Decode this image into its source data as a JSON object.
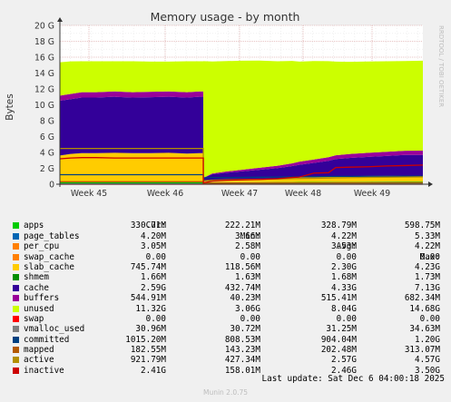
{
  "chart_data": {
    "type": "area",
    "title": "Memory usage - by month",
    "ylabel": "Bytes",
    "watermark": "RRDTOOL / TOBI OETIKER",
    "ylim": [
      0,
      20
    ],
    "y_unit": "G",
    "yticks": [
      "0",
      "2 G",
      "4 G",
      "6 G",
      "8 G",
      "10 G",
      "12 G",
      "14 G",
      "16 G",
      "18 G",
      "20 G"
    ],
    "xticks": [
      "Week 45",
      "Week 46",
      "Week 47",
      "Week 48",
      "Week 49"
    ],
    "grid": true,
    "x_points": [
      0,
      0.03,
      0.06,
      0.1,
      0.15,
      0.2,
      0.25,
      0.3,
      0.35,
      0.385,
      0.3951,
      0.3952,
      0.42,
      0.46,
      0.5,
      0.55,
      0.6,
      0.64,
      0.66,
      0.7,
      0.74,
      0.76,
      0.8,
      0.85,
      0.9,
      0.95,
      1.0
    ],
    "stack": [
      {
        "name": "apps",
        "color": "#00cc00",
        "values": [
          0.3,
          0.3,
          0.3,
          0.3,
          0.3,
          0.3,
          0.3,
          0.3,
          0.3,
          0.3,
          0.3,
          0.22,
          0.25,
          0.25,
          0.25,
          0.26,
          0.27,
          0.27,
          0.28,
          0.28,
          0.29,
          0.3,
          0.3,
          0.31,
          0.32,
          0.33,
          0.33
        ]
      },
      {
        "name": "page_tables",
        "color": "#0066b3",
        "values": [
          0.005,
          0.005,
          0.005,
          0.005,
          0.005,
          0.005,
          0.005,
          0.005,
          0.005,
          0.005,
          0.005,
          0.004,
          0.004,
          0.004,
          0.004,
          0.004,
          0.004,
          0.004,
          0.004,
          0.004,
          0.004,
          0.004,
          0.004,
          0.004,
          0.004,
          0.004,
          0.004
        ]
      },
      {
        "name": "per_cpu",
        "color": "#ff8000",
        "values": [
          0.003,
          0.003,
          0.003,
          0.003,
          0.003,
          0.003,
          0.003,
          0.003,
          0.003,
          0.003,
          0.003,
          0.003,
          0.003,
          0.003,
          0.003,
          0.003,
          0.003,
          0.003,
          0.003,
          0.003,
          0.003,
          0.003,
          0.003,
          0.003,
          0.003,
          0.003,
          0.003
        ]
      },
      {
        "name": "swap_cache",
        "color": "#ffcc00",
        "values": [
          0,
          0,
          0,
          0,
          0,
          0,
          0,
          0,
          0,
          0,
          0,
          0,
          0,
          0,
          0,
          0,
          0,
          0,
          0,
          0,
          0,
          0,
          0,
          0,
          0,
          0,
          0
        ]
      },
      {
        "name": "slab_cache",
        "color": "#ffcc00",
        "values": [
          3.3,
          3.5,
          3.6,
          3.6,
          3.65,
          3.6,
          3.6,
          3.65,
          3.55,
          3.6,
          3.6,
          0.12,
          0.2,
          0.3,
          0.35,
          0.4,
          0.45,
          0.5,
          0.55,
          0.6,
          0.65,
          0.66,
          0.7,
          0.72,
          0.73,
          0.74,
          0.75
        ]
      },
      {
        "name": "shmem",
        "color": "#008f00",
        "values": [
          0.0017,
          0.0017,
          0.0017,
          0.0017,
          0.0017,
          0.0017,
          0.0017,
          0.0017,
          0.0017,
          0.0017,
          0.0017,
          0.0016,
          0.0016,
          0.0016,
          0.0016,
          0.0016,
          0.0016,
          0.0016,
          0.0016,
          0.0016,
          0.0016,
          0.0016,
          0.0016,
          0.0016,
          0.0016,
          0.0016,
          0.0017
        ]
      },
      {
        "name": "cache",
        "color": "#330099",
        "values": [
          6.9,
          6.9,
          7.0,
          7.0,
          7.05,
          7.0,
          7.05,
          7.05,
          7.05,
          7.1,
          7.1,
          0.43,
          0.8,
          0.9,
          1.0,
          1.15,
          1.3,
          1.5,
          1.6,
          1.8,
          2.0,
          2.2,
          2.3,
          2.4,
          2.5,
          2.6,
          2.6
        ]
      },
      {
        "name": "buffers",
        "color": "#990099",
        "values": [
          0.65,
          0.66,
          0.67,
          0.67,
          0.68,
          0.67,
          0.68,
          0.68,
          0.68,
          0.68,
          0.68,
          0.04,
          0.1,
          0.15,
          0.2,
          0.25,
          0.3,
          0.35,
          0.4,
          0.42,
          0.45,
          0.48,
          0.5,
          0.52,
          0.53,
          0.54,
          0.545
        ]
      },
      {
        "name": "unused",
        "color": "#ccff00",
        "values": [
          4.2,
          4.1,
          3.9,
          3.9,
          3.8,
          3.9,
          3.8,
          3.75,
          3.9,
          3.8,
          3.8,
          14.68,
          14.1,
          13.9,
          13.75,
          13.5,
          13.15,
          12.9,
          12.6,
          12.4,
          12.1,
          11.8,
          11.6,
          11.5,
          11.4,
          11.3,
          11.32
        ]
      }
    ],
    "lines": [
      {
        "name": "swap",
        "color": "#ff0000",
        "values": [
          0,
          0,
          0,
          0,
          0,
          0,
          0,
          0,
          0,
          0,
          0,
          0,
          0,
          0,
          0,
          0,
          0,
          0,
          0,
          0,
          0,
          0,
          0,
          0,
          0,
          0,
          0
        ]
      },
      {
        "name": "vmalloc_used",
        "color": "#808080",
        "values": [
          0.0346,
          0.0346,
          0.0346,
          0.0346,
          0.0346,
          0.0346,
          0.0346,
          0.0346,
          0.0346,
          0.0346,
          0.0346,
          0.0307,
          0.0309,
          0.0309,
          0.031,
          0.031,
          0.031,
          0.031,
          0.031,
          0.031,
          0.031,
          0.031,
          0.031,
          0.031,
          0.031,
          0.031,
          0.031
        ]
      },
      {
        "name": "committed",
        "color": "#004080",
        "values": [
          1.2,
          1.2,
          1.2,
          1.2,
          1.2,
          1.2,
          1.2,
          1.2,
          1.2,
          1.2,
          1.2,
          0.81,
          0.82,
          0.84,
          0.86,
          0.88,
          0.9,
          0.92,
          0.93,
          0.95,
          0.97,
          0.98,
          0.99,
          1.0,
          1.0,
          1.01,
          1.015
        ]
      },
      {
        "name": "mapped",
        "color": "#b35a00",
        "values": [
          0.31,
          0.31,
          0.31,
          0.31,
          0.31,
          0.31,
          0.31,
          0.31,
          0.31,
          0.31,
          0.31,
          0.14,
          0.15,
          0.15,
          0.155,
          0.16,
          0.165,
          0.17,
          0.17,
          0.175,
          0.175,
          0.18,
          0.18,
          0.18,
          0.18,
          0.182,
          0.183
        ]
      },
      {
        "name": "active",
        "color": "#b38f00",
        "values": [
          4.5,
          4.5,
          4.5,
          4.5,
          4.5,
          4.5,
          4.5,
          4.5,
          4.5,
          4.5,
          4.5,
          0.43,
          0.5,
          0.55,
          0.6,
          0.62,
          0.65,
          0.7,
          0.72,
          0.75,
          0.78,
          0.8,
          0.83,
          0.86,
          0.88,
          0.9,
          0.92
        ]
      },
      {
        "name": "inactive",
        "color": "#cc0000",
        "values": [
          3.2,
          3.3,
          3.35,
          3.35,
          3.3,
          3.3,
          3.3,
          3.3,
          3.3,
          3.3,
          3.3,
          0.16,
          0.4,
          0.5,
          0.55,
          0.6,
          0.7,
          0.85,
          0.9,
          1.4,
          1.45,
          2.1,
          2.15,
          2.2,
          2.3,
          2.35,
          2.41
        ]
      }
    ]
  },
  "legend": {
    "headers": [
      "Cur:",
      "Min:",
      "Avg:",
      "Max:"
    ],
    "rows": [
      {
        "name": "apps",
        "color": "#00cc00",
        "cur": "330.71M",
        "min": "222.21M",
        "avg": "328.79M",
        "max": "598.75M"
      },
      {
        "name": "page_tables",
        "color": "#0066b3",
        "cur": "4.20M",
        "min": "3.66M",
        "avg": "4.22M",
        "max": "5.33M"
      },
      {
        "name": "per_cpu",
        "color": "#ff8000",
        "cur": "3.05M",
        "min": "2.58M",
        "avg": "3.53M",
        "max": "4.22M"
      },
      {
        "name": "swap_cache",
        "color": "#ff8000",
        "cur": "0.00",
        "min": "0.00",
        "avg": "0.00",
        "max": "0.00"
      },
      {
        "name": "slab_cache",
        "color": "#ffcc00",
        "cur": "745.74M",
        "min": "118.56M",
        "avg": "2.30G",
        "max": "4.23G"
      },
      {
        "name": "shmem",
        "color": "#008f00",
        "cur": "1.66M",
        "min": "1.63M",
        "avg": "1.68M",
        "max": "1.73M"
      },
      {
        "name": "cache",
        "color": "#330099",
        "cur": "2.59G",
        "min": "432.74M",
        "avg": "4.33G",
        "max": "7.13G"
      },
      {
        "name": "buffers",
        "color": "#990099",
        "cur": "544.91M",
        "min": "40.23M",
        "avg": "515.41M",
        "max": "682.34M"
      },
      {
        "name": "unused",
        "color": "#ccff00",
        "cur": "11.32G",
        "min": "3.06G",
        "avg": "8.04G",
        "max": "14.68G"
      },
      {
        "name": "swap",
        "color": "#ff0000",
        "cur": "0.00",
        "min": "0.00",
        "avg": "0.00",
        "max": "0.00"
      },
      {
        "name": "vmalloc_used",
        "color": "#808080",
        "cur": "30.96M",
        "min": "30.72M",
        "avg": "31.25M",
        "max": "34.63M"
      },
      {
        "name": "committed",
        "color": "#004080",
        "cur": "1015.20M",
        "min": "808.53M",
        "avg": "904.04M",
        "max": "1.20G"
      },
      {
        "name": "mapped",
        "color": "#b35a00",
        "cur": "182.55M",
        "min": "143.23M",
        "avg": "202.48M",
        "max": "313.07M"
      },
      {
        "name": "active",
        "color": "#b38f00",
        "cur": "921.79M",
        "min": "427.34M",
        "avg": "2.57G",
        "max": "4.57G"
      },
      {
        "name": "inactive",
        "color": "#cc0000",
        "cur": "2.41G",
        "min": "158.01M",
        "avg": "2.46G",
        "max": "3.50G"
      }
    ]
  },
  "footer": {
    "last_update": "Last update: Sat Dec  6 04:00:18 2025",
    "generator": "Munin 2.0.75"
  }
}
